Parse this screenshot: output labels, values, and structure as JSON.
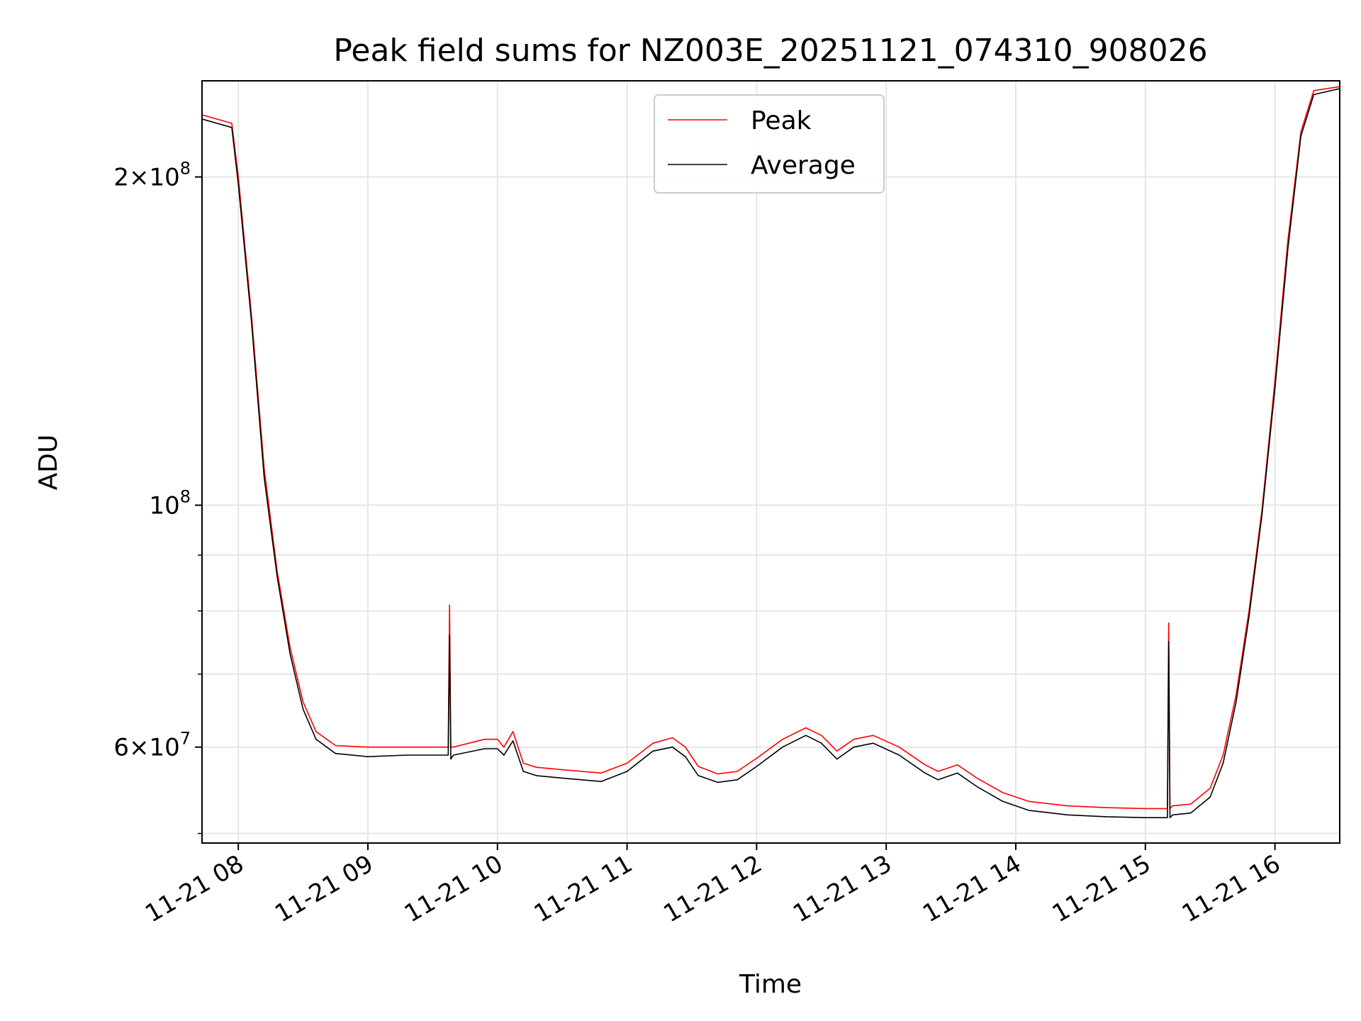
{
  "chart_data": {
    "type": "line",
    "title": "Peak field sums for NZ003E_20251121_074310_908026",
    "xlabel": "Time",
    "ylabel": "ADU",
    "yscale": "log",
    "ylim": [
      49000000,
      245000000
    ],
    "xlim_hours": [
      7.72,
      16.5
    ],
    "grid": true,
    "legend_position": "upper center",
    "x_ticks": [
      {
        "value": 8,
        "label": "11-21 08"
      },
      {
        "value": 9,
        "label": "11-21 09"
      },
      {
        "value": 10,
        "label": "11-21 10"
      },
      {
        "value": 11,
        "label": "11-21 11"
      },
      {
        "value": 12,
        "label": "11-21 12"
      },
      {
        "value": 13,
        "label": "11-21 13"
      },
      {
        "value": 14,
        "label": "11-21 14"
      },
      {
        "value": 15,
        "label": "11-21 15"
      },
      {
        "value": 16,
        "label": "11-21 16"
      }
    ],
    "y_major_ticks": [
      {
        "value": 60000000,
        "mantissa": "6",
        "exp": "7"
      },
      {
        "value": 100000000,
        "mantissa": "",
        "exp": "8"
      },
      {
        "value": 200000000,
        "mantissa": "2",
        "exp": "8"
      }
    ],
    "y_minor_ticks": [
      50000000,
      70000000,
      80000000,
      90000000
    ],
    "series": [
      {
        "name": "Peak",
        "color": "#ff0000",
        "x": [
          7.72,
          7.95,
          8.0,
          8.1,
          8.2,
          8.3,
          8.4,
          8.5,
          8.6,
          8.75,
          9.0,
          9.3,
          9.62,
          9.63,
          9.64,
          9.66,
          9.9,
          10.0,
          10.05,
          10.12,
          10.2,
          10.3,
          10.5,
          10.8,
          11.0,
          11.2,
          11.35,
          11.45,
          11.55,
          11.7,
          11.85,
          12.0,
          12.2,
          12.38,
          12.5,
          12.62,
          12.75,
          12.9,
          13.1,
          13.3,
          13.4,
          13.55,
          13.7,
          13.9,
          14.1,
          14.4,
          14.7,
          15.0,
          15.17,
          15.18,
          15.19,
          15.21,
          15.35,
          15.5,
          15.6,
          15.7,
          15.8,
          15.9,
          16.0,
          16.1,
          16.2,
          16.3,
          16.5
        ],
        "values": [
          228000000,
          224000000,
          200000000,
          150000000,
          108000000,
          87000000,
          74000000,
          66000000,
          62000000,
          60200000,
          60000000,
          60000000,
          60000000,
          81000000,
          60000000,
          60000000,
          61000000,
          61000000,
          60000000,
          62000000,
          58000000,
          57500000,
          57200000,
          56800000,
          58000000,
          60500000,
          61200000,
          60000000,
          57600000,
          56700000,
          57000000,
          58600000,
          61000000,
          62500000,
          61500000,
          59500000,
          61000000,
          61500000,
          60000000,
          57800000,
          57000000,
          57800000,
          56200000,
          54500000,
          53500000,
          53000000,
          52800000,
          52700000,
          52700000,
          78000000,
          52700000,
          53000000,
          53200000,
          55000000,
          59000000,
          67000000,
          80000000,
          99000000,
          130000000,
          175000000,
          220000000,
          240000000,
          242000000
        ]
      },
      {
        "name": "Average",
        "color": "#000000",
        "x": [
          7.72,
          7.95,
          8.0,
          8.1,
          8.2,
          8.3,
          8.4,
          8.5,
          8.6,
          8.75,
          9.0,
          9.3,
          9.62,
          9.63,
          9.64,
          9.66,
          9.9,
          10.0,
          10.05,
          10.12,
          10.2,
          10.3,
          10.5,
          10.8,
          11.0,
          11.2,
          11.35,
          11.45,
          11.55,
          11.7,
          11.85,
          12.0,
          12.2,
          12.38,
          12.5,
          12.62,
          12.75,
          12.9,
          13.1,
          13.3,
          13.4,
          13.55,
          13.7,
          13.9,
          14.1,
          14.4,
          14.7,
          15.0,
          15.17,
          15.18,
          15.19,
          15.21,
          15.35,
          15.5,
          15.6,
          15.7,
          15.8,
          15.9,
          16.0,
          16.1,
          16.2,
          16.3,
          16.5
        ],
        "values": [
          226000000,
          222000000,
          197000000,
          148000000,
          106000000,
          86000000,
          73000000,
          65000000,
          61000000,
          59200000,
          58800000,
          59000000,
          59000000,
          76000000,
          58500000,
          59000000,
          59800000,
          59800000,
          59000000,
          60800000,
          57000000,
          56500000,
          56200000,
          55800000,
          57000000,
          59500000,
          60000000,
          58800000,
          56500000,
          55700000,
          56000000,
          57600000,
          60000000,
          61500000,
          60500000,
          58500000,
          60000000,
          60500000,
          59000000,
          56800000,
          56000000,
          56800000,
          55200000,
          53500000,
          52500000,
          52000000,
          51800000,
          51700000,
          51700000,
          75000000,
          51700000,
          52000000,
          52200000,
          54000000,
          58000000,
          66000000,
          79000000,
          98000000,
          128000000,
          172000000,
          218000000,
          238000000,
          241000000
        ]
      }
    ]
  }
}
